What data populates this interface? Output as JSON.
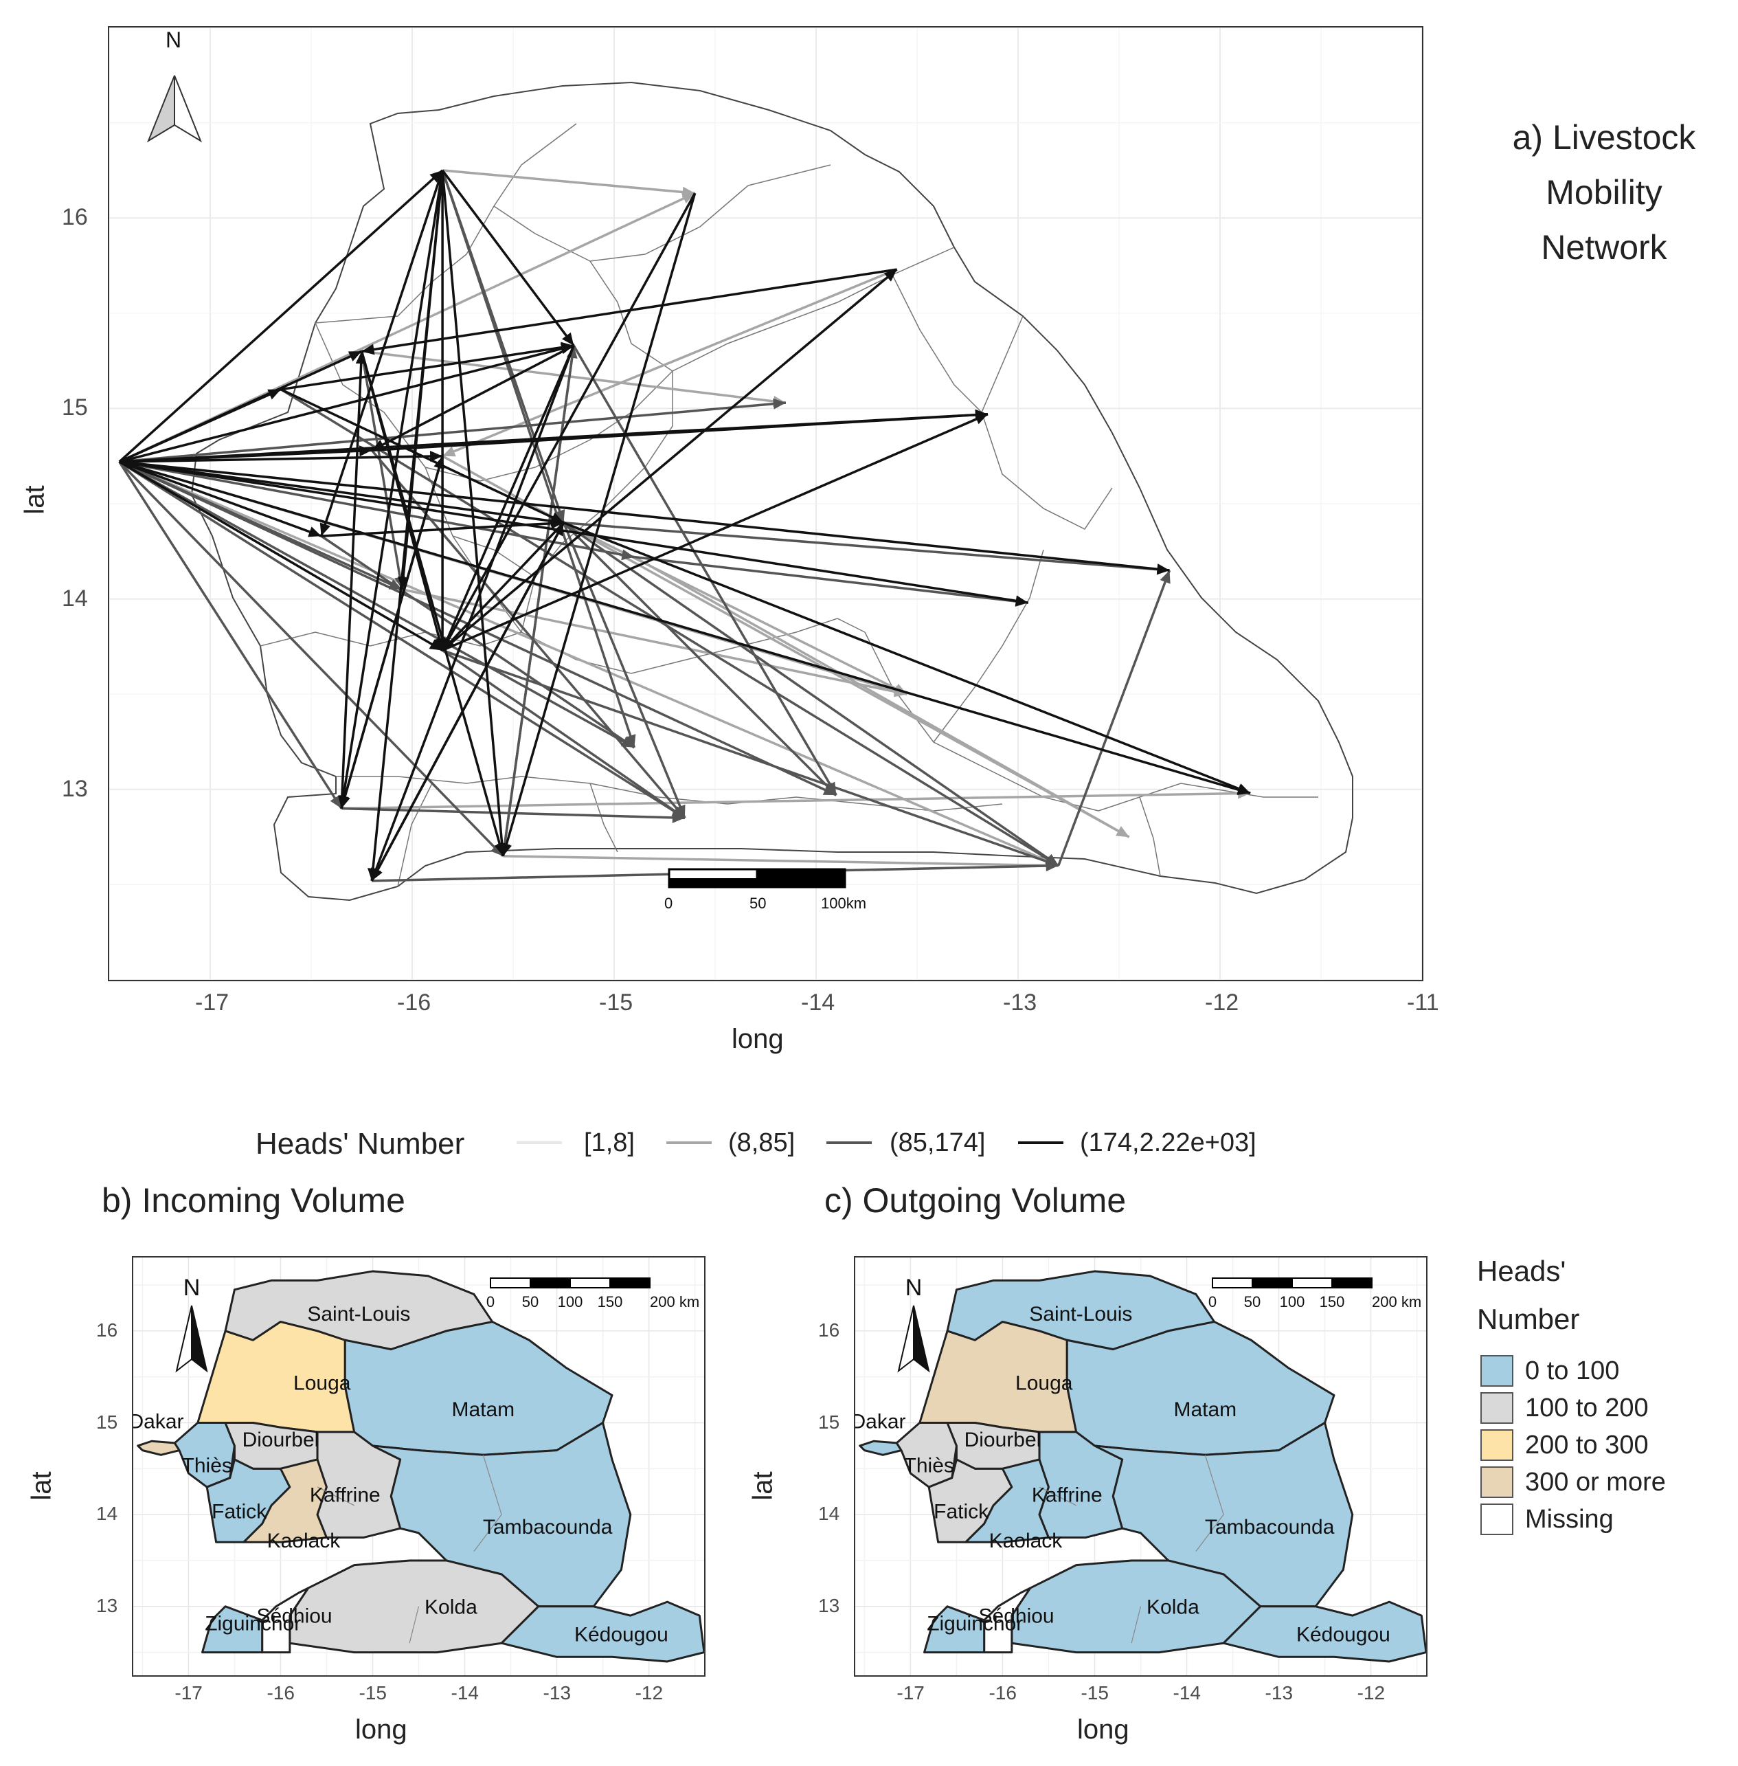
{
  "panel_a": {
    "title_lines": [
      "a) Livestock",
      "Mobility",
      "Network"
    ],
    "xlabel": "long",
    "ylabel": "lat",
    "x_ticks": [
      "-17",
      "-16",
      "-15",
      "-14",
      "-13",
      "-12",
      "-11"
    ],
    "x_tick_values": [
      -17,
      -16,
      -15,
      -14,
      -13,
      -12,
      -11
    ],
    "y_ticks": [
      "13",
      "14",
      "15",
      "16"
    ],
    "y_tick_values": [
      13,
      14,
      15,
      16
    ],
    "xlim": [
      -17.5,
      -11
    ],
    "ylim": [
      12,
      17
    ],
    "north_label": "N",
    "scale_labels": [
      "0",
      "50",
      "100km"
    ]
  },
  "line_legend": {
    "title": "Heads' Number",
    "items": [
      "[1,8]",
      "(8,85]",
      "(85,174]",
      "(174,2.22e+03]"
    ],
    "colors": [
      "#e6e6e6",
      "#a6a6a6",
      "#555555",
      "#111111"
    ]
  },
  "panel_b": {
    "title": "b) Incoming Volume",
    "xlabel": "long",
    "ylabel": "lat",
    "x_ticks": [
      "-17",
      "-16",
      "-15",
      "-14",
      "-13",
      "-12"
    ],
    "y_ticks": [
      "13",
      "14",
      "15",
      "16"
    ],
    "north_label": "N",
    "scale_labels": [
      "0",
      "50",
      "100",
      "150",
      "200 km"
    ],
    "region_labels": [
      "Saint-Louis",
      "Louga",
      "Matam",
      "Dakar",
      "Diourbel",
      "Thiès",
      "Kaffrine",
      "Fatick",
      "Kaolack",
      "Tambacounda",
      "Kolda",
      "Sédhiou",
      "Ziguinchor",
      "Kédougou"
    ],
    "region_classes": {
      "Saint-Louis": "100 to 200",
      "Louga": "200 to 300",
      "Matam": "0 to 100",
      "Dakar": "300 or more",
      "Diourbel": "100 to 200",
      "Thiès": "0 to 100",
      "Kaffrine": "100 to 200",
      "Fatick": "0 to 100",
      "Kaolack": "300 or more",
      "Tambacounda": "0 to 100",
      "Kolda": "100 to 200",
      "Sédhiou": "Missing",
      "Ziguinchor": "0 to 100",
      "Kédougou": "0 to 100"
    }
  },
  "panel_c": {
    "title": "c) Outgoing Volume",
    "xlabel": "long",
    "ylabel": "lat",
    "x_ticks": [
      "-17",
      "-16",
      "-15",
      "-14",
      "-13",
      "-12"
    ],
    "y_ticks": [
      "13",
      "14",
      "15",
      "16"
    ],
    "north_label": "N",
    "scale_labels": [
      "0",
      "50",
      "100",
      "150",
      "200 km"
    ],
    "region_labels": [
      "Saint-Louis",
      "Louga",
      "Matam",
      "Dakar",
      "Diourbel",
      "Thiès",
      "Kaffrine",
      "Fatick",
      "Kaolack",
      "Tambacounda",
      "Kolda",
      "Sédhiou",
      "Ziguinchor",
      "Kédougou"
    ],
    "region_classes": {
      "Saint-Louis": "0 to 100",
      "Louga": "300 or more",
      "Matam": "0 to 100",
      "Dakar": "0 to 100",
      "Diourbel": "100 to 200",
      "Thiès": "100 to 200",
      "Kaffrine": "0 to 100",
      "Fatick": "100 to 200",
      "Kaolack": "0 to 100",
      "Tambacounda": "0 to 100",
      "Kolda": "0 to 100",
      "Sédhiou": "Missing",
      "Ziguinchor": "0 to 100",
      "Kédougou": "0 to 100"
    }
  },
  "fill_legend": {
    "title_lines": [
      "Heads'",
      "Number"
    ],
    "items": [
      "0 to 100",
      "100 to 200",
      "200 to 300",
      "300 or more",
      "Missing"
    ],
    "colors": [
      "#a6cee3",
      "#d9d9d9",
      "#fde3a7",
      "#e8d5b5",
      "#ffffff"
    ]
  },
  "chart_data": {
    "type": "network",
    "nodes": [
      {
        "id": "Dakar",
        "lon": -17.45,
        "lat": 14.72
      },
      {
        "id": "n1",
        "lon": -15.85,
        "lat": 16.25
      },
      {
        "id": "n2",
        "lon": -14.6,
        "lat": 16.13
      },
      {
        "id": "n3",
        "lon": -13.6,
        "lat": 15.73
      },
      {
        "id": "n4",
        "lon": -16.25,
        "lat": 15.3
      },
      {
        "id": "n5",
        "lon": -15.2,
        "lat": 15.33
      },
      {
        "id": "n6",
        "lon": -16.65,
        "lat": 15.1
      },
      {
        "id": "n7",
        "lon": -14.15,
        "lat": 15.03
      },
      {
        "id": "n8",
        "lon": -13.15,
        "lat": 14.97
      },
      {
        "id": "n9",
        "lon": -16.2,
        "lat": 14.78
      },
      {
        "id": "n10",
        "lon": -15.85,
        "lat": 14.75
      },
      {
        "id": "n11",
        "lon": -16.45,
        "lat": 14.33
      },
      {
        "id": "n12",
        "lon": -15.25,
        "lat": 14.4
      },
      {
        "id": "n13",
        "lon": -14.9,
        "lat": 14.22
      },
      {
        "id": "n14",
        "lon": -16.05,
        "lat": 14.05
      },
      {
        "id": "n15",
        "lon": -12.25,
        "lat": 14.15
      },
      {
        "id": "n16",
        "lon": -12.95,
        "lat": 13.98
      },
      {
        "id": "n17",
        "lon": -15.85,
        "lat": 13.73
      },
      {
        "id": "n18",
        "lon": -13.55,
        "lat": 13.5
      },
      {
        "id": "n19",
        "lon": -14.9,
        "lat": 13.22
      },
      {
        "id": "n20",
        "lon": -13.9,
        "lat": 12.97
      },
      {
        "id": "n21",
        "lon": -11.85,
        "lat": 12.98
      },
      {
        "id": "n22",
        "lon": -16.35,
        "lat": 12.9
      },
      {
        "id": "n23",
        "lon": -14.65,
        "lat": 12.85
      },
      {
        "id": "n24",
        "lon": -12.45,
        "lat": 12.75
      },
      {
        "id": "n25",
        "lon": -15.55,
        "lat": 12.65
      },
      {
        "id": "n26",
        "lon": -12.8,
        "lat": 12.6
      },
      {
        "id": "n27",
        "lon": -16.2,
        "lat": 12.52
      }
    ],
    "edges": [
      {
        "from": "Dakar",
        "to": "n1",
        "class": 3
      },
      {
        "from": "Dakar",
        "to": "n4",
        "class": 3
      },
      {
        "from": "Dakar",
        "to": "n5",
        "class": 3
      },
      {
        "from": "Dakar",
        "to": "n6",
        "class": 3
      },
      {
        "from": "Dakar",
        "to": "n8",
        "class": 3
      },
      {
        "from": "Dakar",
        "to": "n9",
        "class": 3
      },
      {
        "from": "Dakar",
        "to": "n10",
        "class": 3
      },
      {
        "from": "Dakar",
        "to": "n12",
        "class": 3
      },
      {
        "from": "Dakar",
        "to": "n15",
        "class": 3
      },
      {
        "from": "Dakar",
        "to": "n16",
        "class": 3
      },
      {
        "from": "Dakar",
        "to": "n17",
        "class": 3
      },
      {
        "from": "Dakar",
        "to": "n21",
        "class": 3
      },
      {
        "from": "Dakar",
        "to": "n22",
        "class": 2
      },
      {
        "from": "Dakar",
        "to": "n7",
        "class": 2
      },
      {
        "from": "Dakar",
        "to": "n11",
        "class": 3
      },
      {
        "from": "Dakar",
        "to": "n13",
        "class": 2
      },
      {
        "from": "Dakar",
        "to": "n19",
        "class": 2
      },
      {
        "from": "Dakar",
        "to": "n20",
        "class": 2
      },
      {
        "from": "Dakar",
        "to": "n23",
        "class": 2
      },
      {
        "from": "Dakar",
        "to": "n18",
        "class": 1
      },
      {
        "from": "Dakar",
        "to": "n25",
        "class": 2
      },
      {
        "from": "Dakar",
        "to": "n26",
        "class": 1
      },
      {
        "from": "Dakar",
        "to": "n14",
        "class": 2
      },
      {
        "from": "Dakar",
        "to": "n2",
        "class": 1
      },
      {
        "from": "n1",
        "to": "n17",
        "class": 3
      },
      {
        "from": "n1",
        "to": "n22",
        "class": 3
      },
      {
        "from": "n1",
        "to": "n27",
        "class": 3
      },
      {
        "from": "n1",
        "to": "n25",
        "class": 3
      },
      {
        "from": "n1",
        "to": "n14",
        "class": 3
      },
      {
        "from": "n1",
        "to": "n11",
        "class": 3
      },
      {
        "from": "n1",
        "to": "n5",
        "class": 3
      },
      {
        "from": "n1",
        "to": "n12",
        "class": 2
      },
      {
        "from": "n1",
        "to": "n2",
        "class": 1
      },
      {
        "from": "n1",
        "to": "n19",
        "class": 2
      },
      {
        "from": "n2",
        "to": "n17",
        "class": 3
      },
      {
        "from": "n2",
        "to": "n25",
        "class": 3
      },
      {
        "from": "n3",
        "to": "n4",
        "class": 3
      },
      {
        "from": "n3",
        "to": "n10",
        "class": 1
      },
      {
        "from": "n4",
        "to": "n17",
        "class": 3
      },
      {
        "from": "n4",
        "to": "n25",
        "class": 3
      },
      {
        "from": "n4",
        "to": "n14",
        "class": 2
      },
      {
        "from": "n4",
        "to": "n7",
        "class": 1
      },
      {
        "from": "n5",
        "to": "n17",
        "class": 3
      },
      {
        "from": "n5",
        "to": "n27",
        "class": 3
      },
      {
        "from": "n5",
        "to": "n25",
        "class": 2
      },
      {
        "from": "n5",
        "to": "n9",
        "class": 3
      },
      {
        "from": "n5",
        "to": "n20",
        "class": 2
      },
      {
        "from": "n6",
        "to": "n26",
        "class": 2
      },
      {
        "from": "n6",
        "to": "n12",
        "class": 3
      },
      {
        "from": "n6",
        "to": "n5",
        "class": 3
      },
      {
        "from": "n9",
        "to": "n8",
        "class": 3
      },
      {
        "from": "n9",
        "to": "n23",
        "class": 2
      },
      {
        "from": "n10",
        "to": "n22",
        "class": 3
      },
      {
        "from": "n10",
        "to": "n24",
        "class": 1
      },
      {
        "from": "n11",
        "to": "n12",
        "class": 3
      },
      {
        "from": "n11",
        "to": "n19",
        "class": 2
      },
      {
        "from": "n12",
        "to": "n17",
        "class": 3
      },
      {
        "from": "n12",
        "to": "n27",
        "class": 3
      },
      {
        "from": "n12",
        "to": "n26",
        "class": 2
      },
      {
        "from": "n12",
        "to": "n21",
        "class": 3
      },
      {
        "from": "n12",
        "to": "n15",
        "class": 2
      },
      {
        "from": "n12",
        "to": "n20",
        "class": 2
      },
      {
        "from": "n12",
        "to": "n23",
        "class": 2
      },
      {
        "from": "n12",
        "to": "n18",
        "class": 1
      },
      {
        "from": "n14",
        "to": "n18",
        "class": 1
      },
      {
        "from": "n17",
        "to": "n26",
        "class": 2
      },
      {
        "from": "n17",
        "to": "n23",
        "class": 2
      },
      {
        "from": "n17",
        "to": "n8",
        "class": 3
      },
      {
        "from": "n17",
        "to": "n3",
        "class": 3
      },
      {
        "from": "n22",
        "to": "n21",
        "class": 1
      },
      {
        "from": "n22",
        "to": "n10",
        "class": 3
      },
      {
        "from": "n22",
        "to": "n23",
        "class": 2
      },
      {
        "from": "n27",
        "to": "n26",
        "class": 2
      },
      {
        "from": "n27",
        "to": "n12",
        "class": 3
      },
      {
        "from": "n25",
        "to": "n26",
        "class": 1
      },
      {
        "from": "n26",
        "to": "n15",
        "class": 2
      },
      {
        "from": "n13",
        "to": "n24",
        "class": 1
      },
      {
        "from": "n13",
        "to": "n16",
        "class": 2
      },
      {
        "from": "n22",
        "to": "n4",
        "class": 3
      },
      {
        "from": "n25",
        "to": "n5",
        "class": 2
      }
    ]
  }
}
